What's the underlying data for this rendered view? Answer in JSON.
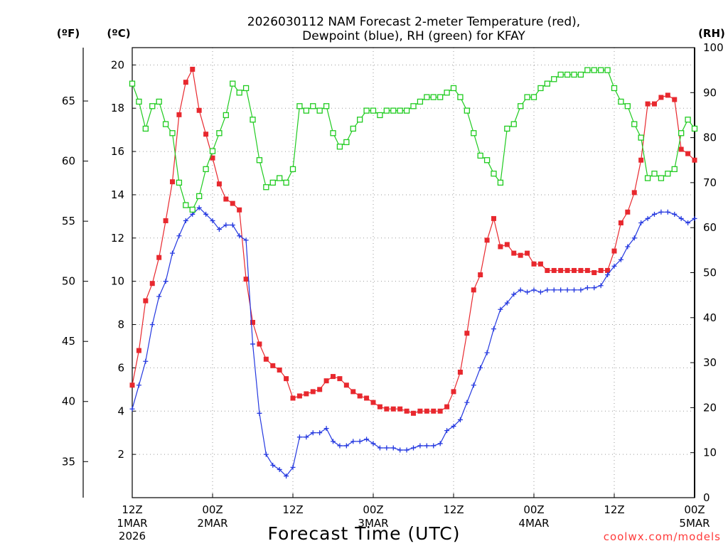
{
  "chart_data": {
    "type": "line",
    "title_line1": "2026030112 NAM Forecast 2-meter Temperature (red),",
    "title_line2": "Dewpoint (blue), RH (green) for KFAY",
    "units": {
      "fahrenheit": "(ºF)",
      "celsius": "(ºC)",
      "rh": "(RH)"
    },
    "xlabel": "Forecast Time (UTC)",
    "credit": "coolwx.com/models",
    "x_range_hours": [
      0,
      84
    ],
    "y_celsius_range": [
      0,
      20.8
    ],
    "y_rh_range": [
      0,
      100
    ],
    "celsius_ticks": [
      "2",
      "4",
      "6",
      "8",
      "10",
      "12",
      "14",
      "16",
      "18",
      "20"
    ],
    "fahrenheit_ticks": [
      "35",
      "40",
      "45",
      "50",
      "55",
      "60",
      "65"
    ],
    "rh_ticks": [
      "0",
      "10",
      "20",
      "30",
      "40",
      "50",
      "60",
      "70",
      "80",
      "90",
      "100"
    ],
    "x_ticks": [
      {
        "label": "12Z",
        "sub1": "1MAR",
        "sub2": "2026",
        "hour": 0
      },
      {
        "label": "00Z",
        "sub1": "2MAR",
        "sub2": "",
        "hour": 12
      },
      {
        "label": "12Z",
        "sub1": "",
        "sub2": "",
        "hour": 24
      },
      {
        "label": "00Z",
        "sub1": "3MAR",
        "sub2": "",
        "hour": 36
      },
      {
        "label": "12Z",
        "sub1": "",
        "sub2": "",
        "hour": 48
      },
      {
        "label": "00Z",
        "sub1": "4MAR",
        "sub2": "",
        "hour": 60
      },
      {
        "label": "12Z",
        "sub1": "",
        "sub2": "",
        "hour": 72
      },
      {
        "label": "00Z",
        "sub1": "5MAR",
        "sub2": "",
        "hour": 84
      }
    ],
    "series": [
      {
        "name": "2-meter Temperature (°C)",
        "color": "#e8282e",
        "marker": "filled-square",
        "x": [
          0,
          1,
          2,
          3,
          4,
          5,
          6,
          7,
          8,
          9,
          10,
          11,
          12,
          13,
          14,
          15,
          16,
          17,
          18,
          19,
          20,
          21,
          22,
          23,
          24,
          25,
          26,
          27,
          28,
          29,
          30,
          31,
          32,
          33,
          34,
          35,
          36,
          37,
          38,
          39,
          40,
          41,
          42,
          43,
          44,
          45,
          46,
          47,
          48,
          49,
          50,
          51,
          52,
          53,
          54,
          55,
          56,
          57,
          58,
          59,
          60,
          61,
          62,
          63,
          64,
          65,
          66,
          67,
          68,
          69,
          70,
          71,
          72,
          73,
          74,
          75,
          76,
          77,
          78,
          79,
          80,
          81,
          82,
          83,
          84
        ],
        "values": [
          5.2,
          6.8,
          9.1,
          9.9,
          11.1,
          12.8,
          14.6,
          17.7,
          19.2,
          19.8,
          17.9,
          16.8,
          15.7,
          14.5,
          13.8,
          13.6,
          13.3,
          10.1,
          8.1,
          7.1,
          6.4,
          6.1,
          5.9,
          5.5,
          4.6,
          4.7,
          4.8,
          4.9,
          5.0,
          5.4,
          5.6,
          5.5,
          5.2,
          4.9,
          4.7,
          4.6,
          4.4,
          4.2,
          4.1,
          4.1,
          4.1,
          4.0,
          3.9,
          4.0,
          4.0,
          4.0,
          4.0,
          4.2,
          4.9,
          5.8,
          7.6,
          9.6,
          10.3,
          11.9,
          12.9,
          11.6,
          11.7,
          11.3,
          11.2,
          11.3,
          10.8,
          10.8,
          10.5,
          10.5,
          10.5,
          10.5,
          10.5,
          10.5,
          10.5,
          10.4,
          10.5,
          10.5,
          11.4,
          12.7,
          13.2,
          14.1,
          15.6,
          18.2,
          18.2,
          18.5,
          18.6,
          18.4,
          16.1,
          15.9,
          15.6
        ]
      },
      {
        "name": "Dewpoint (°C)",
        "color": "#2438e0",
        "marker": "plus",
        "x": [
          0,
          1,
          2,
          3,
          4,
          5,
          6,
          7,
          8,
          9,
          10,
          11,
          12,
          13,
          14,
          15,
          16,
          17,
          18,
          19,
          20,
          21,
          22,
          23,
          24,
          25,
          26,
          27,
          28,
          29,
          30,
          31,
          32,
          33,
          34,
          35,
          36,
          37,
          38,
          39,
          40,
          41,
          42,
          43,
          44,
          45,
          46,
          47,
          48,
          49,
          50,
          51,
          52,
          53,
          54,
          55,
          56,
          57,
          58,
          59,
          60,
          61,
          62,
          63,
          64,
          65,
          66,
          67,
          68,
          69,
          70,
          71,
          72,
          73,
          74,
          75,
          76,
          77,
          78,
          79,
          80,
          81,
          82,
          83,
          84
        ],
        "values": [
          4.1,
          5.2,
          6.3,
          8.0,
          9.3,
          10.0,
          11.3,
          12.1,
          12.8,
          13.1,
          13.4,
          13.1,
          12.8,
          12.4,
          12.6,
          12.6,
          12.1,
          11.9,
          7.1,
          3.9,
          2.0,
          1.5,
          1.3,
          1.0,
          1.4,
          2.8,
          2.8,
          3.0,
          3.0,
          3.2,
          2.6,
          2.4,
          2.4,
          2.6,
          2.6,
          2.7,
          2.5,
          2.3,
          2.3,
          2.3,
          2.2,
          2.2,
          2.3,
          2.4,
          2.4,
          2.4,
          2.5,
          3.1,
          3.3,
          3.6,
          4.4,
          5.2,
          6.0,
          6.7,
          7.8,
          8.7,
          9.0,
          9.4,
          9.6,
          9.5,
          9.6,
          9.5,
          9.6,
          9.6,
          9.6,
          9.6,
          9.6,
          9.6,
          9.7,
          9.7,
          9.8,
          10.3,
          10.7,
          11.0,
          11.6,
          12.0,
          12.7,
          12.9,
          13.1,
          13.2,
          13.2,
          13.1,
          12.9,
          12.7,
          12.9
        ]
      },
      {
        "name": "RH (%)",
        "color": "#1fcb1f",
        "marker": "open-square",
        "axis": "right",
        "x": [
          0,
          1,
          2,
          3,
          4,
          5,
          6,
          7,
          8,
          9,
          10,
          11,
          12,
          13,
          14,
          15,
          16,
          17,
          18,
          19,
          20,
          21,
          22,
          23,
          24,
          25,
          26,
          27,
          28,
          29,
          30,
          31,
          32,
          33,
          34,
          35,
          36,
          37,
          38,
          39,
          40,
          41,
          42,
          43,
          44,
          45,
          46,
          47,
          48,
          49,
          50,
          51,
          52,
          53,
          54,
          55,
          56,
          57,
          58,
          59,
          60,
          61,
          62,
          63,
          64,
          65,
          66,
          67,
          68,
          69,
          70,
          71,
          72,
          73,
          74,
          75,
          76,
          77,
          78,
          79,
          80,
          81,
          82,
          83,
          84
        ],
        "values": [
          92,
          88,
          82,
          87,
          88,
          83,
          81,
          70,
          65,
          64,
          67,
          73,
          77,
          81,
          85,
          92,
          90,
          91,
          84,
          75,
          69,
          70,
          71,
          70,
          73,
          87,
          86,
          87,
          86,
          87,
          81,
          78,
          79,
          82,
          84,
          86,
          86,
          85,
          86,
          86,
          86,
          86,
          87,
          88,
          89,
          89,
          89,
          90,
          91,
          89,
          86,
          81,
          76,
          75,
          72,
          70,
          82,
          83,
          87,
          89,
          89,
          91,
          92,
          93,
          94,
          94,
          94,
          94,
          95,
          95,
          95,
          95,
          91,
          88,
          87,
          83,
          80,
          71,
          72,
          71,
          72,
          73,
          81,
          84,
          82
        ]
      }
    ]
  }
}
